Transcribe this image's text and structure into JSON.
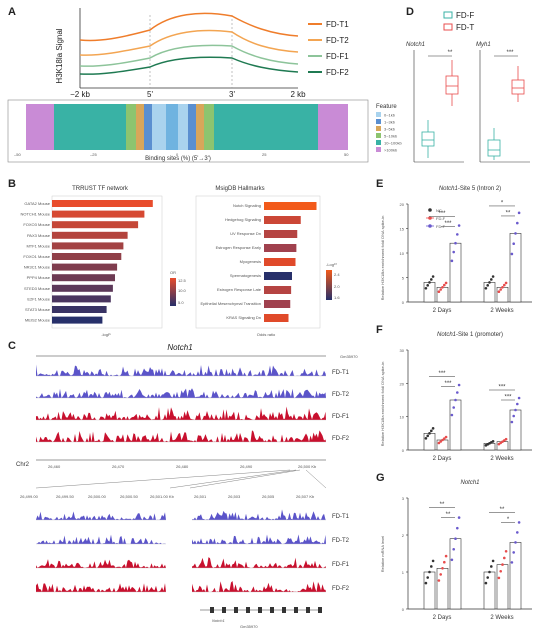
{
  "panels": {
    "A": "A",
    "B": "B",
    "C": "C",
    "D": "D",
    "E": "E",
    "F": "F",
    "G": "G"
  },
  "colors": {
    "fdt1": "#ef7d2b",
    "fdt2": "#f3a552",
    "fdf1": "#8dc49a",
    "fdf2": "#1f7a52",
    "purple": "#5b54c9",
    "red": "#c8102e",
    "nc": "#333333",
    "fdf": "#e84c4c",
    "fdt": "#6a5acd"
  },
  "panelA": {
    "ylabel": "H3K18la Signal",
    "xticks": [
      "−2 kb",
      "5'",
      "3'",
      "2 kb"
    ],
    "legend": [
      "FD-T1",
      "FD-T2",
      "FD-F1",
      "FD-F2"
    ],
    "feature_title": "Feature",
    "feature_items": [
      "0~1kb",
      "1~3kb",
      "3~5kb",
      "5~10kb",
      "10~100kb",
      ">100kb"
    ],
    "binding_xlabel": "Binding sites (%) (5'→3')"
  },
  "panelB": {
    "left_title": "TRRUST TF network",
    "right_title": "MsigDB Hallmarks",
    "left_terms": [
      "GATA2 Mouse",
      "NOTCH1 Mouse",
      "FOXO3 Mouse",
      "PAX3 Mouse",
      "MTF1 Mouse",
      "FOXO1 Mouse",
      "NR3C1 Mouse",
      "PPP4 Mouse",
      "STED3 Mouse",
      "E2F1 Mouse",
      "STAT3 Mouse",
      "MEIS2 Mouse"
    ],
    "left_values": [
      4.8,
      4.4,
      4.1,
      3.6,
      3.4,
      3.3,
      3.1,
      3.0,
      2.9,
      2.8,
      2.6,
      2.4
    ],
    "right_terms": [
      "Notch Signaling",
      "Hedgehog Signaling",
      "UV Response Dn",
      "Estrogen Response Early",
      "Myogenesis",
      "Spermatogenesis",
      "Estrogen Response Late",
      "Epithelial Mesenchymal Transition",
      "KRAS Signaling Dn"
    ],
    "right_values": [
      3.0,
      2.1,
      1.9,
      1.85,
      1.8,
      1.6,
      1.55,
      1.5,
      1.4
    ],
    "left_xlabel": "-logP",
    "right_xlabel": "Odds ratio",
    "or_legend": "OR",
    "p_legend": "-Log¹⁰"
  },
  "panelC": {
    "title": "Notch1",
    "tracks": [
      "FD-T1",
      "FD-T2",
      "FD-F1",
      "FD-F2"
    ],
    "chr": "Chr2",
    "coords": [
      "26,460",
      "26,470",
      "26,480",
      "26,490",
      "26,500 Kb"
    ],
    "zoom1_coords": [
      "26,499.00",
      "26,499.50",
      "26,500.00",
      "26,500.50",
      "26,501.00 Kb"
    ],
    "zoom2_coords": [
      "26,501",
      "26,503",
      "26,505",
      "26,507 Kb"
    ],
    "gene_labels": [
      "Notch1",
      "Gm35970"
    ]
  },
  "panelD": {
    "legend": [
      "FD-F",
      "FD-T"
    ],
    "genes": [
      "Notch1",
      "Myh1"
    ],
    "sig": [
      "**",
      "***"
    ]
  },
  "panelE": {
    "title_gene": "Notch1",
    "title_rest": "-Site 5 (Intron 2)",
    "ylabel": "Relative H3K18la enrichment fold/ DNA spike-in",
    "yticks": [
      "0",
      "5",
      "10",
      "15",
      "20"
    ],
    "legend": [
      "NC",
      "FD-F",
      "FD-T"
    ],
    "groups": [
      "2 Days",
      "2 Weeks"
    ],
    "sig": [
      "***",
      "***",
      "*",
      "**"
    ]
  },
  "panelF": {
    "title_gene": "Notch1",
    "title_rest": "-Site 1 (promoter)",
    "ylabel": "Relative H3K18la enrichment fold/ DNA spike-in",
    "yticks": [
      "0",
      "10",
      "20",
      "30"
    ],
    "groups": [
      "2 Days",
      "2 Weeks"
    ],
    "sig": [
      "***",
      "***",
      "***",
      "***"
    ]
  },
  "panelG": {
    "title_gene": "Notch1",
    "ylabel": "Relative mRNA level",
    "yticks": [
      "0",
      "1",
      "2",
      "3"
    ],
    "groups": [
      "2 Days",
      "2 Weeks"
    ],
    "sig": [
      "**",
      "**",
      "**",
      "*"
    ]
  },
  "chart_data": [
    {
      "type": "bar",
      "title": "Notch1-Site 5 (Intron 2)",
      "ylabel": "Relative H3K18la enrichment fold/ DNA spike-in",
      "categories": [
        "2 Days",
        "2 Weeks"
      ],
      "ylim": [
        0,
        20
      ],
      "series": [
        {
          "name": "NC",
          "values": [
            4,
            4
          ]
        },
        {
          "name": "FD-F",
          "values": [
            3,
            3
          ]
        },
        {
          "name": "FD-T",
          "values": [
            12,
            14
          ]
        }
      ]
    },
    {
      "type": "bar",
      "title": "Notch1-Site 1 (promoter)",
      "ylabel": "Relative H3K18la enrichment fold/ DNA spike-in",
      "categories": [
        "2 Days",
        "2 Weeks"
      ],
      "ylim": [
        0,
        30
      ],
      "series": [
        {
          "name": "NC",
          "values": [
            5,
            2
          ]
        },
        {
          "name": "FD-F",
          "values": [
            3,
            2.5
          ]
        },
        {
          "name": "FD-T",
          "values": [
            15,
            12
          ]
        }
      ]
    },
    {
      "type": "bar",
      "title": "Notch1",
      "ylabel": "Relative mRNA level",
      "categories": [
        "2 Days",
        "2 Weeks"
      ],
      "ylim": [
        0,
        3
      ],
      "series": [
        {
          "name": "NC",
          "values": [
            1.0,
            1.0
          ]
        },
        {
          "name": "FD-F",
          "values": [
            1.1,
            1.2
          ]
        },
        {
          "name": "FD-T",
          "values": [
            1.9,
            1.8
          ]
        }
      ]
    }
  ]
}
